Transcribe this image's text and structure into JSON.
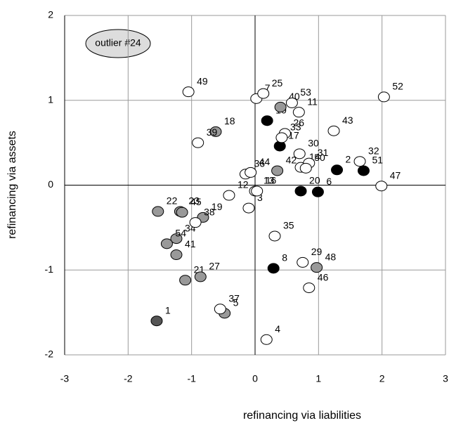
{
  "chart_data": {
    "type": "scatter",
    "x_label": "refinancing via liabilities",
    "y_label": "refinancing via assets",
    "annotation": "outlier  #24",
    "xlim": [
      -3,
      3
    ],
    "ylim": [
      -2,
      2
    ],
    "xticks": [
      -3,
      -2,
      -1,
      0,
      1,
      2,
      3
    ],
    "yticks": [
      -2,
      -1,
      0,
      1,
      2
    ],
    "grid": true,
    "points": [
      {
        "label": "1",
        "x": -1.55,
        "y": -1.6,
        "color": "#555555"
      },
      {
        "label": "2",
        "x": 1.29,
        "y": 0.18,
        "color": "#000000"
      },
      {
        "label": "3",
        "x": -0.1,
        "y": -0.27,
        "color": "#ffffff"
      },
      {
        "label": "4",
        "x": 0.18,
        "y": -1.82,
        "color": "#ffffff"
      },
      {
        "label": "5",
        "x": -0.48,
        "y": -1.51,
        "color": "#999999"
      },
      {
        "label": "6",
        "x": 0.99,
        "y": -0.08,
        "color": "#000000"
      },
      {
        "label": "7",
        "x": 0.02,
        "y": 1.02,
        "color": "#ffffff"
      },
      {
        "label": "8",
        "x": 0.29,
        "y": -0.98,
        "color": "#000000"
      },
      {
        "label": "10",
        "x": 0.19,
        "y": 0.76,
        "color": "#000000"
      },
      {
        "label": "11",
        "x": 0.69,
        "y": 0.86,
        "color": "#ffffff"
      },
      {
        "label": "12",
        "x": -0.41,
        "y": -0.12,
        "color": "#ffffff"
      },
      {
        "label": "13",
        "x": 0.0,
        "y": -0.07,
        "color": "#ffffff"
      },
      {
        "label": "14",
        "x": 0.72,
        "y": 0.21,
        "color": "#ffffff"
      },
      {
        "label": "16",
        "x": 0.03,
        "y": -0.07,
        "color": "#ffffff"
      },
      {
        "label": "17",
        "x": 0.39,
        "y": 0.46,
        "color": "#000000"
      },
      {
        "label": "18",
        "x": -0.62,
        "y": 0.63,
        "color": "#999999"
      },
      {
        "label": "19",
        "x": -0.82,
        "y": -0.38,
        "color": "#999999"
      },
      {
        "label": "20",
        "x": 0.72,
        "y": -0.07,
        "color": "#000000"
      },
      {
        "label": "21",
        "x": -1.1,
        "y": -1.12,
        "color": "#999999"
      },
      {
        "label": "22",
        "x": -1.53,
        "y": -0.31,
        "color": "#999999"
      },
      {
        "label": "23",
        "x": -1.18,
        "y": -0.31,
        "color": "#999999"
      },
      {
        "label": "25",
        "x": 0.13,
        "y": 1.08,
        "color": "#ffffff"
      },
      {
        "label": "26",
        "x": 0.47,
        "y": 0.61,
        "color": "#ffffff"
      },
      {
        "label": "27",
        "x": -0.86,
        "y": -1.08,
        "color": "#999999"
      },
      {
        "label": "29",
        "x": 0.75,
        "y": -0.91,
        "color": "#ffffff"
      },
      {
        "label": "30",
        "x": 0.7,
        "y": 0.37,
        "color": "#ffffff"
      },
      {
        "label": "31",
        "x": 0.85,
        "y": 0.26,
        "color": "#ffffff"
      },
      {
        "label": "32",
        "x": 1.65,
        "y": 0.28,
        "color": "#ffffff"
      },
      {
        "label": "33",
        "x": 0.42,
        "y": 0.56,
        "color": "#ffffff"
      },
      {
        "label": "34",
        "x": -1.24,
        "y": -0.63,
        "color": "#999999"
      },
      {
        "label": "35",
        "x": 0.31,
        "y": -0.6,
        "color": "#ffffff"
      },
      {
        "label": "36",
        "x": -0.15,
        "y": 0.13,
        "color": "#ffffff"
      },
      {
        "label": "37",
        "x": -0.55,
        "y": -1.46,
        "color": "#ffffff"
      },
      {
        "label": "38",
        "x": -0.94,
        "y": -0.44,
        "color": "#ffffff"
      },
      {
        "label": "39",
        "x": -0.9,
        "y": 0.5,
        "color": "#ffffff"
      },
      {
        "label": "40",
        "x": 0.4,
        "y": 0.92,
        "color": "#999999"
      },
      {
        "label": "41",
        "x": -1.24,
        "y": -0.82,
        "color": "#999999"
      },
      {
        "label": "42",
        "x": 0.35,
        "y": 0.17,
        "color": "#999999"
      },
      {
        "label": "43",
        "x": 1.24,
        "y": 0.64,
        "color": "#ffffff"
      },
      {
        "label": "44",
        "x": -0.07,
        "y": 0.15,
        "color": "#ffffff"
      },
      {
        "label": "45",
        "x": -1.15,
        "y": -0.32,
        "color": "#999999"
      },
      {
        "label": "46",
        "x": 0.85,
        "y": -1.21,
        "color": "#ffffff"
      },
      {
        "label": "47",
        "x": 1.99,
        "y": -0.01,
        "color": "#ffffff"
      },
      {
        "label": "48",
        "x": 0.97,
        "y": -0.97,
        "color": "#999999"
      },
      {
        "label": "49",
        "x": -1.05,
        "y": 1.1,
        "color": "#ffffff"
      },
      {
        "label": "50",
        "x": 0.8,
        "y": 0.2,
        "color": "#ffffff"
      },
      {
        "label": "51",
        "x": 1.71,
        "y": 0.17,
        "color": "#000000"
      },
      {
        "label": "52",
        "x": 2.03,
        "y": 1.04,
        "color": "#ffffff"
      },
      {
        "label": "53",
        "x": 0.58,
        "y": 0.97,
        "color": "#ffffff"
      },
      {
        "label": "54",
        "x": -1.39,
        "y": -0.69,
        "color": "#999999"
      }
    ]
  }
}
